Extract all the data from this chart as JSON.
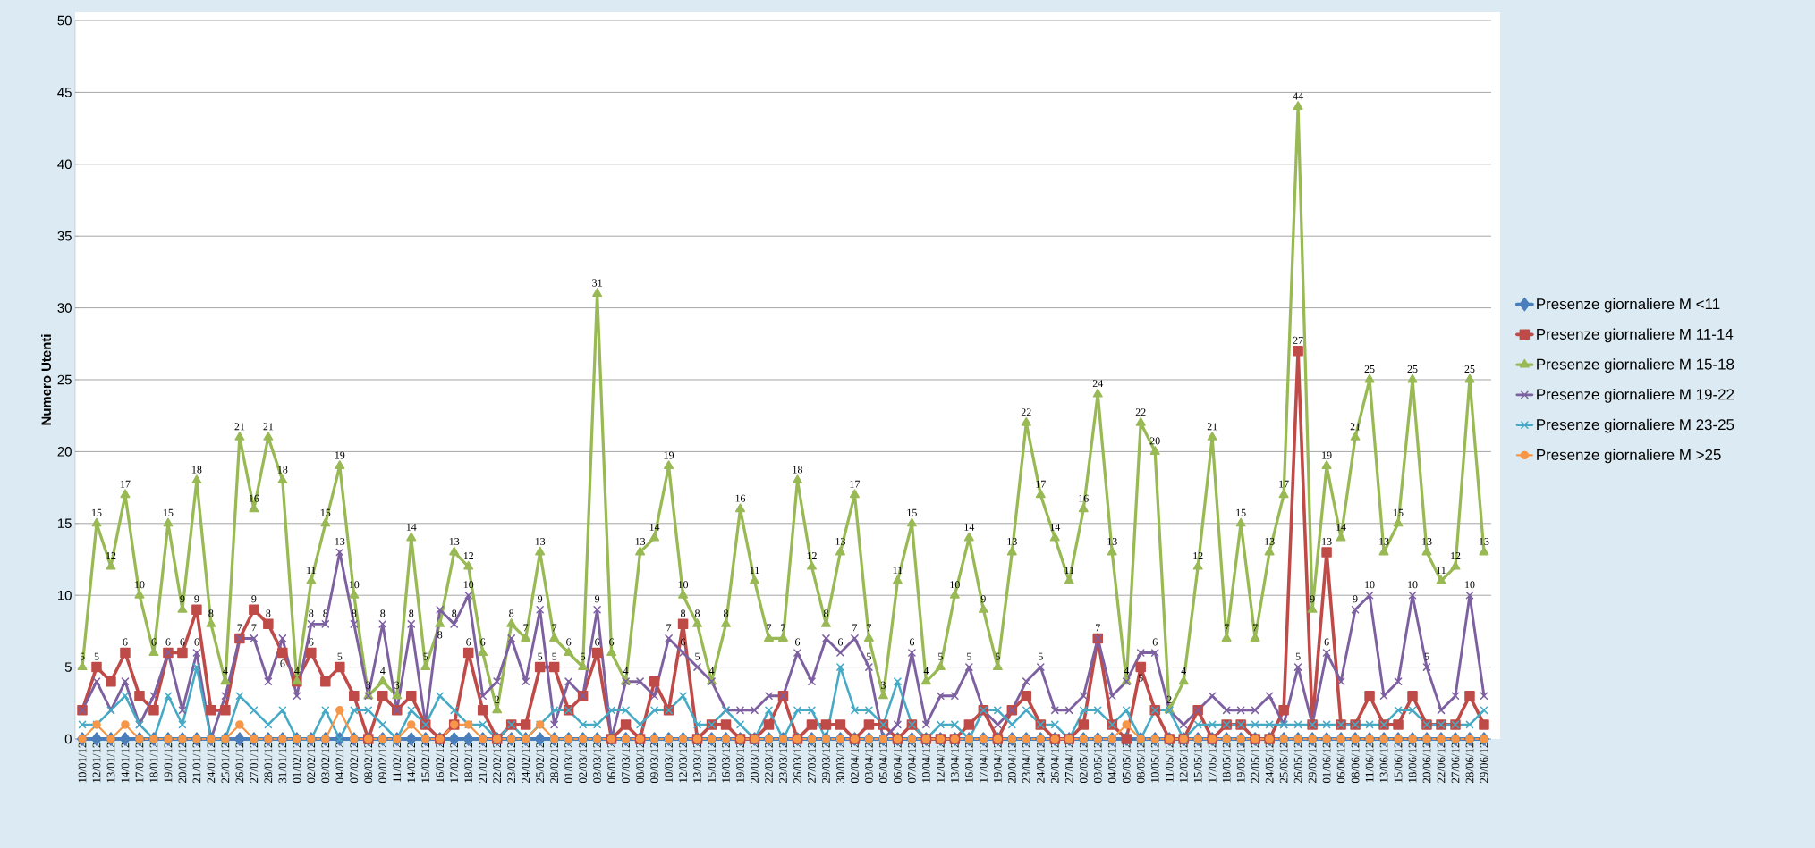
{
  "chart_data": {
    "type": "line",
    "ylabel": "Numero Utenti",
    "categories": [
      "10/01/12",
      "12/01/12",
      "13/01/12",
      "14/01/12",
      "17/01/12",
      "18/01/12",
      "19/01/12",
      "20/01/12",
      "21/01/12",
      "24/01/12",
      "25/01/12",
      "26/01/12",
      "27/01/12",
      "28/01/12",
      "31/01/12",
      "01/02/12",
      "02/02/12",
      "03/02/12",
      "04/02/12",
      "07/02/12",
      "08/02/12",
      "09/02/12",
      "11/02/12",
      "14/02/12",
      "15/02/12",
      "16/02/12",
      "17/02/12",
      "18/02/12",
      "21/02/12",
      "22/02/12",
      "23/02/12",
      "24/02/12",
      "25/02/12",
      "28/02/12",
      "01/03/12",
      "02/03/12",
      "03/03/12",
      "06/03/12",
      "07/03/12",
      "08/03/12",
      "09/03/12",
      "10/03/12",
      "12/03/12",
      "13/03/12",
      "15/03/12",
      "16/03/12",
      "19/03/12",
      "20/03/12",
      "22/03/12",
      "23/03/12",
      "26/03/12",
      "27/03/12",
      "29/03/12",
      "30/03/12",
      "02/04/12",
      "03/04/12",
      "05/04/12",
      "06/04/12",
      "07/04/12",
      "10/04/12",
      "12/04/12",
      "13/04/12",
      "16/04/12",
      "17/04/12",
      "19/04/12",
      "20/04/12",
      "23/04/12",
      "24/04/12",
      "26/04/12",
      "27/04/12",
      "02/05/12",
      "03/05/12",
      "04/05/12",
      "05/05/12",
      "08/05/12",
      "10/05/12",
      "11/05/12",
      "12/05/12",
      "15/05/12",
      "17/05/12",
      "18/05/12",
      "19/05/12",
      "22/05/12",
      "24/05/12",
      "25/05/12",
      "26/05/12",
      "29/05/12",
      "01/06/12",
      "06/06/12",
      "08/06/12",
      "11/06/12",
      "13/06/12",
      "15/06/12",
      "18/06/12",
      "20/06/12",
      "22/06/12",
      "27/06/12",
      "28/06/12",
      "29/06/12"
    ],
    "series": [
      {
        "name": "Presenze giornaliere M <11",
        "color": "#4a7ebb",
        "marker": "diamond",
        "values": [
          0,
          0,
          0,
          0,
          0,
          0,
          0,
          0,
          0,
          0,
          0,
          0,
          0,
          0,
          0,
          0,
          0,
          0,
          0,
          0,
          0,
          0,
          0,
          0,
          0,
          0,
          0,
          0,
          0,
          0,
          0,
          0,
          0,
          0,
          0,
          0,
          0,
          0,
          0,
          0,
          0,
          0,
          0,
          0,
          0,
          0,
          0,
          0,
          0,
          0,
          0,
          0,
          0,
          0,
          0,
          0,
          0,
          0,
          0,
          0,
          0,
          0,
          0,
          0,
          0,
          0,
          0,
          0,
          0,
          0,
          0,
          0,
          0,
          0,
          0,
          0,
          0,
          0,
          0,
          0,
          0,
          0,
          0,
          0,
          0,
          0,
          0,
          0,
          0,
          0,
          0,
          0,
          0,
          0,
          0,
          0,
          0,
          0,
          0
        ]
      },
      {
        "name": "Presenze giornaliere M 11-14",
        "color": "#be4b48",
        "marker": "square",
        "values": [
          2,
          5,
          4,
          6,
          3,
          2,
          6,
          6,
          9,
          2,
          2,
          7,
          9,
          8,
          6,
          4,
          6,
          4,
          5,
          3,
          0,
          3,
          2,
          3,
          1,
          0,
          1,
          6,
          2,
          0,
          1,
          1,
          5,
          5,
          2,
          3,
          6,
          0,
          1,
          0,
          4,
          2,
          8,
          0,
          1,
          1,
          0,
          0,
          1,
          3,
          0,
          1,
          1,
          1,
          0,
          1,
          1,
          0,
          1,
          0,
          0,
          0,
          1,
          2,
          0,
          2,
          3,
          1,
          0,
          0,
          1,
          7,
          1,
          0,
          5,
          2,
          0,
          0,
          2,
          0,
          1,
          1,
          0,
          0,
          2,
          27,
          1,
          13,
          1,
          1,
          3,
          1,
          1,
          3,
          1,
          1,
          1,
          3,
          1
        ],
        "value_labels": [
          null,
          "5",
          null,
          "6",
          null,
          null,
          "6",
          "6",
          "9",
          null,
          null,
          "7",
          "9",
          "8",
          "6",
          null,
          "6",
          null,
          "5",
          null,
          null,
          null,
          null,
          null,
          null,
          null,
          null,
          "6",
          null,
          null,
          null,
          null,
          "5",
          "5",
          null,
          null,
          "6",
          null,
          null,
          null,
          null,
          null,
          "8",
          null,
          null,
          null,
          null,
          null,
          null,
          null,
          null,
          null,
          null,
          null,
          null,
          null,
          null,
          null,
          null,
          null,
          null,
          null,
          null,
          null,
          null,
          null,
          null,
          null,
          null,
          null,
          null,
          "7",
          null,
          null,
          "5",
          null,
          null,
          null,
          null,
          null,
          null,
          null,
          null,
          null,
          null,
          "27",
          null,
          "13",
          null,
          null,
          null,
          null,
          null,
          null,
          null,
          null,
          null,
          null,
          null
        ]
      },
      {
        "name": "Presenze giornaliere M 15-18",
        "color": "#98b954",
        "marker": "triangle",
        "values": [
          5,
          15,
          12,
          17,
          10,
          6,
          15,
          9,
          18,
          8,
          4,
          21,
          16,
          21,
          18,
          4,
          11,
          15,
          19,
          10,
          3,
          4,
          3,
          14,
          5,
          8,
          13,
          12,
          6,
          2,
          8,
          7,
          13,
          7,
          6,
          5,
          31,
          6,
          4,
          13,
          14,
          19,
          10,
          8,
          4,
          8,
          16,
          11,
          7,
          7,
          18,
          12,
          8,
          13,
          17,
          7,
          3,
          11,
          15,
          4,
          5,
          10,
          14,
          9,
          5,
          13,
          22,
          17,
          14,
          11,
          16,
          24,
          13,
          4,
          22,
          20,
          2,
          4,
          12,
          21,
          7,
          15,
          7,
          13,
          17,
          44,
          9,
          19,
          14,
          21,
          25,
          13,
          15,
          25,
          13,
          11,
          12,
          25,
          13
        ],
        "value_labels": [
          "5",
          "15",
          "12",
          "17",
          "10",
          "6",
          "15",
          "9",
          "18",
          "8",
          "4",
          "21",
          "16",
          "21",
          "18",
          "4",
          "11",
          "15",
          "19",
          "10",
          "3",
          "4",
          "3",
          "14",
          "5",
          "8",
          "13",
          "12",
          "6",
          "2",
          "8",
          "7",
          "13",
          "7",
          "6",
          "5",
          "31",
          "6",
          "4",
          "13",
          "14",
          "19",
          "10",
          "8",
          "4",
          "8",
          "16",
          "11",
          "7",
          "7",
          "18",
          "12",
          "8",
          "13",
          "17",
          "7",
          "3",
          "11",
          "15",
          "4",
          "5",
          "10",
          "14",
          "9",
          "5",
          "13",
          "22",
          "17",
          "14",
          "11",
          "16",
          "24",
          "13",
          "4",
          "22",
          "20",
          "2",
          "4",
          "12",
          "21",
          "7",
          "15",
          "7",
          "13",
          "17",
          "44",
          "9",
          "19",
          "14",
          "21",
          "25",
          "13",
          "15",
          "25",
          "13",
          "11",
          "12",
          "25",
          "13"
        ]
      },
      {
        "name": "Presenze giornaliere M 19-22",
        "color": "#7d60a0",
        "marker": "cross",
        "values": [
          2,
          4,
          2,
          4,
          1,
          3,
          6,
          2,
          6,
          0,
          3,
          7,
          7,
          4,
          7,
          3,
          8,
          8,
          13,
          8,
          3,
          8,
          2,
          8,
          1,
          9,
          8,
          10,
          3,
          4,
          7,
          4,
          9,
          1,
          4,
          3,
          9,
          0,
          4,
          4,
          3,
          7,
          6,
          5,
          4,
          2,
          2,
          2,
          3,
          3,
          6,
          4,
          7,
          6,
          7,
          5,
          0,
          1,
          6,
          1,
          3,
          3,
          5,
          2,
          1,
          2,
          4,
          5,
          2,
          2,
          3,
          7,
          3,
          4,
          6,
          6,
          2,
          1,
          2,
          3,
          2,
          2,
          2,
          3,
          1,
          5,
          1,
          6,
          4,
          9,
          10,
          3,
          4,
          10,
          5,
          2,
          3,
          10,
          3
        ],
        "value_labels": [
          null,
          null,
          null,
          null,
          null,
          null,
          null,
          null,
          "6",
          null,
          null,
          null,
          "7",
          null,
          null,
          null,
          "8",
          "8",
          "13",
          "8",
          null,
          "8",
          null,
          "8",
          null,
          null,
          "8",
          "10",
          null,
          null,
          null,
          null,
          "9",
          null,
          null,
          null,
          "9",
          null,
          null,
          null,
          null,
          "7",
          "6",
          "5",
          null,
          null,
          null,
          null,
          null,
          null,
          "6",
          null,
          null,
          "6",
          "7",
          "5",
          null,
          null,
          "6",
          null,
          null,
          null,
          "5",
          null,
          null,
          null,
          null,
          "5",
          null,
          null,
          null,
          null,
          null,
          null,
          null,
          "6",
          null,
          null,
          null,
          null,
          null,
          null,
          null,
          null,
          null,
          "5",
          null,
          "6",
          null,
          "9",
          "10",
          null,
          null,
          "10",
          "5",
          null,
          null,
          "10",
          null
        ]
      },
      {
        "name": "Presenze giornaliere M 23-25",
        "color": "#46aac5",
        "marker": "cross",
        "values": [
          1,
          1,
          2,
          3,
          1,
          0,
          3,
          1,
          5,
          0,
          0,
          3,
          2,
          1,
          2,
          0,
          0,
          2,
          0,
          2,
          2,
          1,
          0,
          2,
          1,
          3,
          2,
          1,
          1,
          0,
          1,
          0,
          1,
          2,
          2,
          1,
          1,
          2,
          2,
          1,
          2,
          2,
          3,
          1,
          1,
          2,
          1,
          0,
          2,
          0,
          2,
          2,
          0,
          5,
          2,
          2,
          1,
          4,
          1,
          0,
          1,
          1,
          0,
          2,
          2,
          1,
          2,
          1,
          1,
          0,
          2,
          2,
          1,
          2,
          0,
          2,
          2,
          0,
          1,
          1,
          1,
          1,
          1,
          1,
          1,
          1,
          1,
          1,
          1,
          1,
          1,
          1,
          2,
          2,
          1,
          1,
          1,
          1,
          2
        ]
      },
      {
        "name": "Presenze giornaliere M >25",
        "color": "#f79646",
        "marker": "circle",
        "values": [
          0,
          1,
          0,
          1,
          0,
          0,
          0,
          0,
          0,
          0,
          0,
          1,
          0,
          0,
          0,
          0,
          0,
          0,
          2,
          0,
          0,
          0,
          0,
          1,
          0,
          0,
          1,
          1,
          0,
          0,
          0,
          0,
          1,
          0,
          0,
          0,
          0,
          0,
          0,
          0,
          0,
          0,
          0,
          0,
          0,
          0,
          0,
          0,
          0,
          0,
          0,
          0,
          0,
          0,
          0,
          0,
          0,
          0,
          0,
          0,
          0,
          0,
          0,
          0,
          0,
          0,
          0,
          0,
          0,
          0,
          0,
          0,
          0,
          1,
          0,
          0,
          0,
          0,
          0,
          0,
          0,
          0,
          0,
          0,
          0,
          0,
          0,
          0,
          0,
          0,
          0,
          0,
          0,
          0,
          0,
          0,
          0,
          0,
          0
        ]
      }
    ],
    "ylim": [
      0,
      50
    ],
    "yticks": [
      0,
      5,
      10,
      15,
      20,
      25,
      30,
      35,
      40,
      45,
      50
    ],
    "grid": "y",
    "legend": "right"
  }
}
